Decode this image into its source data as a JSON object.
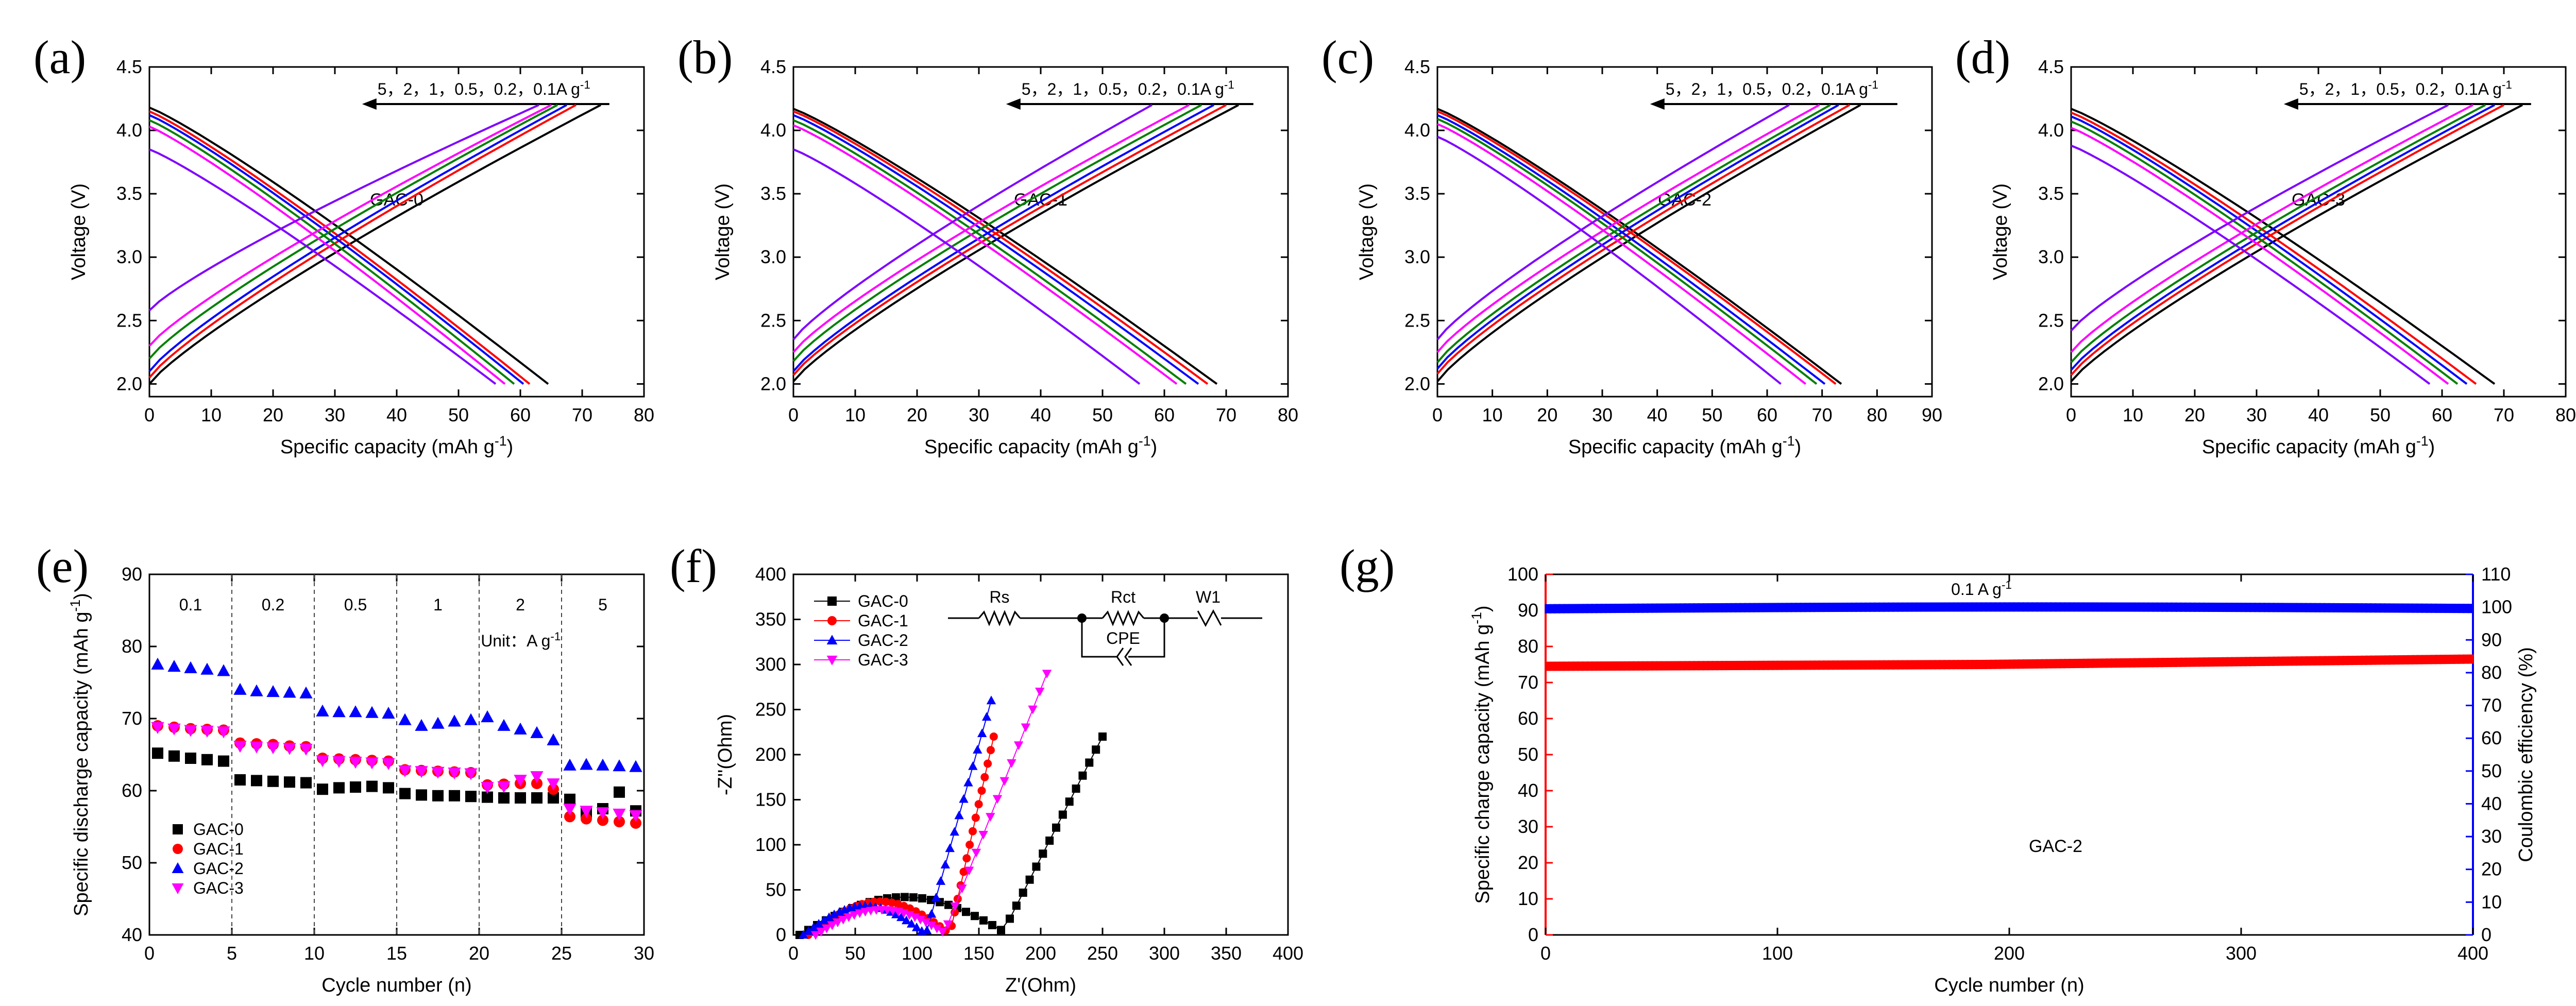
{
  "figure_labels": [
    "(a)",
    "(b)",
    "(c)",
    "(d)",
    "(e)",
    "(f)",
    "(g)"
  ],
  "colors": {
    "0.1": "#000000",
    "0.2": "#ff0000",
    "0.5": "#0000ff",
    "1": "#008000",
    "2": "#ff00ff",
    "5": "#7f00ff",
    "GAC-0": "#000000",
    "GAC-1": "#ff0000",
    "GAC-2": "#0000ff",
    "GAC-3": "#ff00ff",
    "red_axis": "#ff0000",
    "blue_axis": "#0000ff"
  },
  "chart_data": [
    {
      "id": "a",
      "type": "line",
      "label": "(a)",
      "sample": "GAC-0",
      "rate_annotation": "5，2，1，0.5，0.2，0.1A g",
      "rate_superscript": "-1",
      "xlabel": "Specific capacity (mAh g",
      "xlabel_sup": "-1",
      "xlabel_end": ")",
      "ylabel": "Voltage (V)",
      "xlim": [
        0,
        80
      ],
      "ylim": [
        1.9,
        4.5
      ],
      "xticks": [
        "0",
        "10",
        "20",
        "30",
        "40",
        "50",
        "60",
        "70",
        "80"
      ],
      "yticks": [
        "2.0",
        "2.5",
        "3.0",
        "3.5",
        "4.0",
        "4.5"
      ],
      "series": [
        {
          "rate": "0.1",
          "charge": {
            "v_start": 2.0,
            "x_end": 73
          },
          "discharge": {
            "v_start": 4.18,
            "x_end": 64.5
          }
        },
        {
          "rate": "0.2",
          "charge": {
            "v_start": 2.05,
            "x_end": 69
          },
          "discharge": {
            "v_start": 4.15,
            "x_end": 61.5
          }
        },
        {
          "rate": "0.5",
          "charge": {
            "v_start": 2.1,
            "x_end": 67.5
          },
          "discharge": {
            "v_start": 4.12,
            "x_end": 60.5
          }
        },
        {
          "rate": "1",
          "charge": {
            "v_start": 2.2,
            "x_end": 66
          },
          "discharge": {
            "v_start": 4.08,
            "x_end": 59
          }
        },
        {
          "rate": "2",
          "charge": {
            "v_start": 2.3,
            "x_end": 65
          },
          "discharge": {
            "v_start": 4.03,
            "x_end": 57.5
          }
        },
        {
          "rate": "5",
          "charge": {
            "v_start": 2.58,
            "x_end": 63
          },
          "discharge": {
            "v_start": 3.85,
            "x_end": 56
          }
        }
      ]
    },
    {
      "id": "b",
      "type": "line",
      "label": "(b)",
      "sample": "GAC-1",
      "rate_annotation": "5，2，1，0.5，0.2，0.1A g",
      "rate_superscript": "-1",
      "xlabel": "Specific capacity (mAh g",
      "xlabel_sup": "-1",
      "xlabel_end": ")",
      "ylabel": "Voltage (V)",
      "xlim": [
        0,
        80
      ],
      "ylim": [
        1.9,
        4.5
      ],
      "xticks": [
        "0",
        "10",
        "20",
        "30",
        "40",
        "50",
        "60",
        "70",
        "80"
      ],
      "yticks": [
        "2.0",
        "2.5",
        "3.0",
        "3.5",
        "4.0",
        "4.5"
      ],
      "series": [
        {
          "rate": "0.1",
          "charge": {
            "v_start": 2.02,
            "x_end": 72
          },
          "discharge": {
            "v_start": 4.17,
            "x_end": 68.5
          }
        },
        {
          "rate": "0.2",
          "charge": {
            "v_start": 2.07,
            "x_end": 70
          },
          "discharge": {
            "v_start": 4.15,
            "x_end": 67
          }
        },
        {
          "rate": "0.5",
          "charge": {
            "v_start": 2.1,
            "x_end": 68
          },
          "discharge": {
            "v_start": 4.12,
            "x_end": 65.5
          }
        },
        {
          "rate": "1",
          "charge": {
            "v_start": 2.18,
            "x_end": 66
          },
          "discharge": {
            "v_start": 4.08,
            "x_end": 63.5
          }
        },
        {
          "rate": "2",
          "charge": {
            "v_start": 2.25,
            "x_end": 64
          },
          "discharge": {
            "v_start": 4.04,
            "x_end": 62
          }
        },
        {
          "rate": "5",
          "charge": {
            "v_start": 2.35,
            "x_end": 58
          },
          "discharge": {
            "v_start": 3.85,
            "x_end": 56
          }
        }
      ]
    },
    {
      "id": "c",
      "type": "line",
      "label": "(c)",
      "sample": "GAC-2",
      "rate_annotation": "5，2，1，0.5，0.2，0.1A g",
      "rate_superscript": "-1",
      "xlabel": "Specific capacity (mAh g",
      "xlabel_sup": "-1",
      "xlabel_end": ")",
      "ylabel": "Voltage (V)",
      "xlim": [
        0,
        90
      ],
      "ylim": [
        1.9,
        4.5
      ],
      "xticks": [
        "0",
        "10",
        "20",
        "30",
        "40",
        "50",
        "60",
        "70",
        "80",
        "90"
      ],
      "yticks": [
        "2.0",
        "2.5",
        "3.0",
        "3.5",
        "4.0",
        "4.5"
      ],
      "series": [
        {
          "rate": "0.1",
          "charge": {
            "v_start": 2.02,
            "x_end": 77
          },
          "discharge": {
            "v_start": 4.17,
            "x_end": 73.5
          }
        },
        {
          "rate": "0.2",
          "charge": {
            "v_start": 2.08,
            "x_end": 75
          },
          "discharge": {
            "v_start": 4.15,
            "x_end": 72.5
          }
        },
        {
          "rate": "0.5",
          "charge": {
            "v_start": 2.12,
            "x_end": 73
          },
          "discharge": {
            "v_start": 4.12,
            "x_end": 70.5
          }
        },
        {
          "rate": "1",
          "charge": {
            "v_start": 2.17,
            "x_end": 71.5
          },
          "discharge": {
            "v_start": 4.09,
            "x_end": 69
          }
        },
        {
          "rate": "2",
          "charge": {
            "v_start": 2.25,
            "x_end": 69.5
          },
          "discharge": {
            "v_start": 4.05,
            "x_end": 67
          }
        },
        {
          "rate": "5",
          "charge": {
            "v_start": 2.35,
            "x_end": 64
          },
          "discharge": {
            "v_start": 3.95,
            "x_end": 62.5
          }
        }
      ]
    },
    {
      "id": "d",
      "type": "line",
      "label": "(d)",
      "sample": "GAC-3",
      "rate_annotation": "5，2，1，0.5，0.2，0.1A g",
      "rate_superscript": "-1",
      "xlabel": "Specific capacity (mAh g",
      "xlabel_sup": "-1",
      "xlabel_end": ")",
      "ylabel": "Voltage (V)",
      "xlim": [
        0,
        80
      ],
      "ylim": [
        1.9,
        4.5
      ],
      "xticks": [
        "0",
        "10",
        "20",
        "30",
        "40",
        "50",
        "60",
        "70",
        "80"
      ],
      "yticks": [
        "2.0",
        "2.5",
        "3.0",
        "3.5",
        "4.0",
        "4.5"
      ],
      "series": [
        {
          "rate": "0.1",
          "charge": {
            "v_start": 2.02,
            "x_end": 73
          },
          "discharge": {
            "v_start": 4.17,
            "x_end": 68.5
          }
        },
        {
          "rate": "0.2",
          "charge": {
            "v_start": 2.07,
            "x_end": 70
          },
          "discharge": {
            "v_start": 4.14,
            "x_end": 65.5
          }
        },
        {
          "rate": "0.5",
          "charge": {
            "v_start": 2.11,
            "x_end": 68.5
          },
          "discharge": {
            "v_start": 4.11,
            "x_end": 64
          }
        },
        {
          "rate": "1",
          "charge": {
            "v_start": 2.17,
            "x_end": 67
          },
          "discharge": {
            "v_start": 4.07,
            "x_end": 62.5
          }
        },
        {
          "rate": "2",
          "charge": {
            "v_start": 2.25,
            "x_end": 65
          },
          "discharge": {
            "v_start": 4.02,
            "x_end": 61
          }
        },
        {
          "rate": "5",
          "charge": {
            "v_start": 2.42,
            "x_end": 61
          },
          "discharge": {
            "v_start": 3.88,
            "x_end": 58
          }
        }
      ]
    },
    {
      "id": "e",
      "type": "scatter",
      "label": "(e)",
      "xlabel": "Cycle number (n)",
      "ylabel": "Specific discharge capacity (mAh g",
      "ylabel_sup": "-1",
      "ylabel_end": ")",
      "xlim": [
        0,
        30
      ],
      "ylim": [
        40,
        90
      ],
      "xticks": [
        "0",
        "5",
        "10",
        "15",
        "20",
        "25",
        "30"
      ],
      "yticks": [
        "40",
        "50",
        "60",
        "70",
        "80",
        "90"
      ],
      "rate_labels": [
        "0.1",
        "0.2",
        "0.5",
        "1",
        "2",
        "5"
      ],
      "unit_label": "Unit：A g",
      "unit_sup": "-1",
      "legend": [
        "GAC-0",
        "GAC-1",
        "GAC-2",
        "GAC-3"
      ],
      "series": [
        {
          "name": "GAC-0",
          "marker": "square",
          "values": [
            65.2,
            64.8,
            64.5,
            64.3,
            64.1,
            61.5,
            61.4,
            61.3,
            61.2,
            61.1,
            60.2,
            60.4,
            60.5,
            60.6,
            60.4,
            59.6,
            59.4,
            59.3,
            59.3,
            59.2,
            59.1,
            59.0,
            59.0,
            59.0,
            59.0,
            58.8,
            57.0,
            57.5,
            59.8,
            57.2
          ]
        },
        {
          "name": "GAC-1",
          "marker": "circle",
          "values": [
            69.0,
            68.8,
            68.6,
            68.5,
            68.4,
            66.6,
            66.5,
            66.4,
            66.2,
            66.1,
            64.5,
            64.4,
            64.3,
            64.2,
            64.1,
            62.9,
            62.8,
            62.7,
            62.6,
            62.5,
            60.8,
            60.9,
            61.0,
            61.0,
            60.2,
            56.4,
            56.1,
            55.9,
            55.7,
            55.5
          ]
        },
        {
          "name": "GAC-2",
          "marker": "triangle",
          "values": [
            77.5,
            77.2,
            77.0,
            76.8,
            76.6,
            74.0,
            73.8,
            73.7,
            73.6,
            73.5,
            71.0,
            70.9,
            70.9,
            70.8,
            70.7,
            69.8,
            69.0,
            69.3,
            69.6,
            69.8,
            70.2,
            69.0,
            68.5,
            68.0,
            67.0,
            63.5,
            63.6,
            63.5,
            63.4,
            63.3
          ]
        },
        {
          "name": "GAC-3",
          "marker": "triangle-down",
          "values": [
            68.8,
            68.6,
            68.4,
            68.3,
            68.2,
            66.2,
            66.1,
            66.0,
            65.9,
            65.8,
            64.2,
            64.1,
            64.0,
            63.9,
            63.8,
            62.8,
            62.7,
            62.6,
            62.5,
            62.4,
            60.5,
            60.6,
            61.5,
            62.0,
            61.0,
            57.5,
            57.2,
            57.0,
            56.8,
            56.6
          ]
        }
      ]
    },
    {
      "id": "f",
      "type": "scatter",
      "label": "(f)",
      "xlabel": "Z'(Ohm)",
      "ylabel": "-Z''(Ohm)",
      "xlim": [
        0,
        400
      ],
      "ylim": [
        0,
        400
      ],
      "xticks": [
        "0",
        "50",
        "100",
        "150",
        "200",
        "250",
        "300",
        "350",
        "400"
      ],
      "yticks": [
        "0",
        "50",
        "100",
        "150",
        "200",
        "250",
        "300",
        "350",
        "400"
      ],
      "legend": [
        "GAC-0",
        "GAC-1",
        "GAC-2",
        "GAC-3"
      ],
      "circuit_labels": {
        "rs": "Rs",
        "rct": "Rct",
        "cpe": "CPE",
        "w": "W1"
      },
      "series": [
        {
          "name": "GAC-0",
          "marker": "square",
          "arc": {
            "x0": 5,
            "x1": 175,
            "peak": 42
          },
          "tail": {
            "x0": 175,
            "y0": 18,
            "x1": 250,
            "y1": 220
          }
        },
        {
          "name": "GAC-1",
          "marker": "circle",
          "arc": {
            "x0": 12,
            "x1": 128,
            "peak": 37
          },
          "tail": {
            "x0": 128,
            "y0": 10,
            "x1": 162,
            "y1": 220
          }
        },
        {
          "name": "GAC-2",
          "marker": "triangle",
          "arc": {
            "x0": 8,
            "x1": 108,
            "peak": 32
          },
          "tail": {
            "x0": 108,
            "y0": 5,
            "x1": 160,
            "y1": 260
          }
        },
        {
          "name": "GAC-3",
          "marker": "triangle-down",
          "arc": {
            "x0": 18,
            "x1": 125,
            "peak": 28
          },
          "tail": {
            "x0": 125,
            "y0": 12,
            "x1": 205,
            "y1": 290
          }
        }
      ]
    },
    {
      "id": "g",
      "type": "scatter",
      "label": "(g)",
      "sample": "GAC-2",
      "rate_annotation": "0.1 A g",
      "rate_superscript": "-1",
      "xlabel": "Cycle number (n)",
      "ylabel_left": "Specific charge capacity (mAh g",
      "ylabel_left_sup": "-1",
      "ylabel_left_end": ")",
      "ylabel_right": "Coulombic efficiency (%)",
      "xlim": [
        0,
        400
      ],
      "ylim_left": [
        0,
        100
      ],
      "ylim_right": [
        0,
        110
      ],
      "xticks": [
        "0",
        "100",
        "200",
        "300",
        "400"
      ],
      "yticks_left": [
        "0",
        "10",
        "20",
        "30",
        "40",
        "50",
        "60",
        "70",
        "80",
        "90",
        "100"
      ],
      "yticks_right": [
        "0",
        "10",
        "20",
        "30",
        "40",
        "50",
        "60",
        "70",
        "80",
        "90",
        "100",
        "110"
      ],
      "series": [
        {
          "name": "Specific charge capacity",
          "axis": "left",
          "x_range": [
            1,
            400
          ],
          "y_start": 74.5,
          "y_mid": 75.0,
          "y_end": 76.5
        },
        {
          "name": "Coulombic efficiency",
          "axis": "right",
          "x_range": [
            1,
            400
          ],
          "y_start": 99.5,
          "y_mid": 100.0,
          "y_end": 99.8
        }
      ]
    }
  ]
}
